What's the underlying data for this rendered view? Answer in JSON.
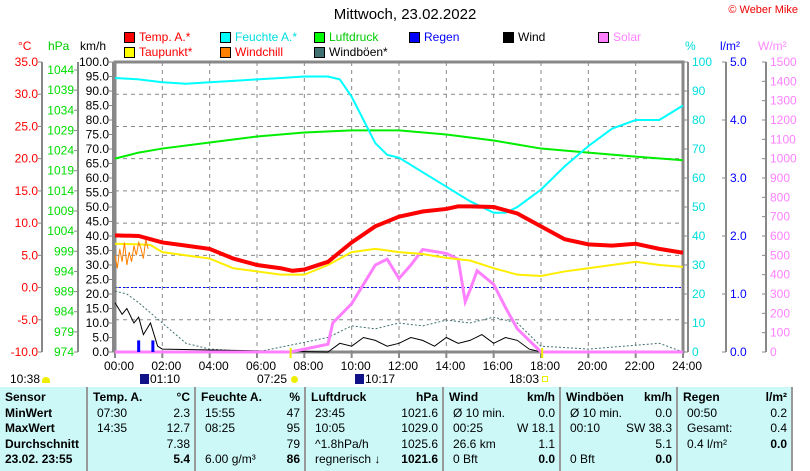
{
  "title": "Mittwoch, 23.02.2022",
  "copyright": "© Weber Mike",
  "legend": [
    {
      "label": "Temp. A.*",
      "color": "#ff0000",
      "text": "#ff0000"
    },
    {
      "label": "Feuchte A.*",
      "color": "#00ffff",
      "text": "#00dddd"
    },
    {
      "label": "Luftdruck",
      "color": "#00ff00",
      "text": "#00cc00"
    },
    {
      "label": "Regen",
      "color": "#0000ff",
      "text": "#0000ff"
    },
    {
      "label": "Wind",
      "color": "#000000",
      "text": "#000000"
    },
    {
      "label": "Solar",
      "color": "#ff80ff",
      "text": "#ff80ff"
    },
    {
      "label": "Taupunkt*",
      "color": "#ffff00",
      "text": "#ff0000"
    },
    {
      "label": "Windchill",
      "color": "#ff8000",
      "text": "#ff0000"
    },
    {
      "label": "Windböen*",
      "color": "#407070",
      "text": "#000000"
    }
  ],
  "axes": {
    "temp": {
      "unit": "°C",
      "ticks": [
        "35.0",
        "30.0",
        "25.0",
        "20.0",
        "15.0",
        "10.0",
        "5.0",
        "0.0",
        "-5.0",
        "-10.0"
      ],
      "color": "#ff0000"
    },
    "pressure": {
      "unit": "hPa",
      "ticks": [
        "1044",
        "1039",
        "1034",
        "1029",
        "1024",
        "1019",
        "1014",
        "1009",
        "1004",
        "999",
        "994",
        "989",
        "984",
        "979",
        "974"
      ],
      "color": "#00dd00"
    },
    "wind": {
      "unit": "km/h",
      "ticks": [
        "100.0",
        "95.0",
        "90.0",
        "85.0",
        "80.0",
        "75.0",
        "70.0",
        "65.0",
        "60.0",
        "55.0",
        "50.0",
        "45.0",
        "40.0",
        "35.0",
        "30.0",
        "25.0",
        "20.0",
        "15.0",
        "10.0",
        "5.0",
        "0.0"
      ],
      "color": "#000000"
    },
    "humidity": {
      "unit": "%",
      "ticks": [
        "100",
        "90",
        "80",
        "70",
        "60",
        "50",
        "40",
        "30",
        "20",
        "10",
        "0"
      ],
      "color": "#00dddd"
    },
    "rain": {
      "unit": "l/m²",
      "ticks": [
        "5.0",
        "4.0",
        "3.0",
        "2.0",
        "1.0",
        "0.0"
      ],
      "color": "#0000ff"
    },
    "solar": {
      "unit": "W/m²",
      "ticks": [
        "1500",
        "1400",
        "1300",
        "1200",
        "1100",
        "1000",
        "900",
        "800",
        "700",
        "600",
        "500",
        "400",
        "300",
        "200",
        "100",
        "0"
      ],
      "color": "#ff80ff"
    },
    "time": [
      "00:00",
      "02:00",
      "04:00",
      "06:00",
      "08:00",
      "10:00",
      "12:00",
      "14:00",
      "16:00",
      "18:00",
      "20:00",
      "22:00",
      "24:00"
    ]
  },
  "series": {
    "temp": [
      [
        0,
        8.1
      ],
      [
        1,
        8
      ],
      [
        1.5,
        7.5
      ],
      [
        2,
        7
      ],
      [
        3,
        6.5
      ],
      [
        4,
        6
      ],
      [
        5,
        4.5
      ],
      [
        6,
        3.5
      ],
      [
        7,
        3
      ],
      [
        7.5,
        2.6
      ],
      [
        8,
        2.8
      ],
      [
        9,
        4
      ],
      [
        10,
        7
      ],
      [
        11,
        9.5
      ],
      [
        12,
        11
      ],
      [
        13,
        11.8
      ],
      [
        14,
        12.2
      ],
      [
        14.5,
        12.6
      ],
      [
        15,
        12.6
      ],
      [
        16,
        12.5
      ],
      [
        17,
        11.5
      ],
      [
        18,
        9.5
      ],
      [
        19,
        7.5
      ],
      [
        20,
        6.7
      ],
      [
        21,
        6.5
      ],
      [
        22,
        6.8
      ],
      [
        23,
        6
      ],
      [
        24,
        5.4
      ]
    ],
    "dewpoint": [
      [
        0,
        6.8
      ],
      [
        1,
        6.7
      ],
      [
        1.5,
        6.6
      ],
      [
        2,
        5.5
      ],
      [
        3,
        5
      ],
      [
        4,
        4.5
      ],
      [
        5,
        3
      ],
      [
        6,
        2.5
      ],
      [
        7,
        2
      ],
      [
        8,
        2
      ],
      [
        9,
        3.5
      ],
      [
        10,
        5.5
      ],
      [
        11,
        6
      ],
      [
        12,
        5.5
      ],
      [
        13,
        5.2
      ],
      [
        14,
        4.6
      ],
      [
        15,
        4.2
      ],
      [
        16,
        3
      ],
      [
        17,
        2
      ],
      [
        18,
        1.8
      ],
      [
        19,
        2.5
      ],
      [
        20,
        3
      ],
      [
        21,
        3.5
      ],
      [
        22,
        4
      ],
      [
        23,
        3.5
      ],
      [
        24,
        3.2
      ]
    ],
    "windchill": [
      [
        0,
        5
      ],
      [
        0.1,
        3
      ],
      [
        0.2,
        6
      ],
      [
        0.3,
        4
      ],
      [
        0.4,
        7
      ],
      [
        0.5,
        3.5
      ],
      [
        0.6,
        5.5
      ],
      [
        0.7,
        4
      ],
      [
        0.8,
        6.5
      ],
      [
        0.9,
        5
      ],
      [
        1,
        7
      ],
      [
        1.1,
        6
      ],
      [
        1.2,
        4.5
      ],
      [
        1.3,
        7.5
      ],
      [
        1.4,
        6
      ]
    ],
    "humidity": [
      [
        0,
        94.5
      ],
      [
        1,
        94
      ],
      [
        2,
        93
      ],
      [
        3,
        92.5
      ],
      [
        4,
        93
      ],
      [
        5,
        93.5
      ],
      [
        6,
        94
      ],
      [
        7,
        94.5
      ],
      [
        8,
        95
      ],
      [
        9,
        95
      ],
      [
        9.5,
        94
      ],
      [
        10,
        88
      ],
      [
        10.5,
        80
      ],
      [
        11,
        72
      ],
      [
        11.5,
        68
      ],
      [
        12,
        67
      ],
      [
        13,
        62
      ],
      [
        14,
        57
      ],
      [
        15,
        52
      ],
      [
        16,
        48
      ],
      [
        16.5,
        48
      ],
      [
        17,
        50
      ],
      [
        18,
        56
      ],
      [
        19,
        64
      ],
      [
        20,
        71
      ],
      [
        21,
        77
      ],
      [
        22,
        80
      ],
      [
        23,
        80
      ],
      [
        24,
        85
      ]
    ],
    "pressure": [
      [
        0,
        1022
      ],
      [
        1,
        1023.5
      ],
      [
        2,
        1024.5
      ],
      [
        4,
        1026
      ],
      [
        6,
        1027.5
      ],
      [
        8,
        1028.5
      ],
      [
        10,
        1029
      ],
      [
        12,
        1029
      ],
      [
        14,
        1028
      ],
      [
        16,
        1026.5
      ],
      [
        18,
        1024.5
      ],
      [
        20,
        1023.5
      ],
      [
        22,
        1022.5
      ],
      [
        24,
        1021.6
      ]
    ],
    "solar": [
      [
        0,
        0
      ],
      [
        7.4,
        0
      ],
      [
        8,
        15
      ],
      [
        9,
        40
      ],
      [
        9.2,
        150
      ],
      [
        10,
        250
      ],
      [
        10.5,
        350
      ],
      [
        11,
        450
      ],
      [
        11.5,
        480
      ],
      [
        12,
        380
      ],
      [
        12.5,
        450
      ],
      [
        13,
        530
      ],
      [
        14,
        510
      ],
      [
        14.5,
        480
      ],
      [
        14.8,
        260
      ],
      [
        15,
        320
      ],
      [
        15.3,
        420
      ],
      [
        16,
        350
      ],
      [
        16.5,
        230
      ],
      [
        17,
        120
      ],
      [
        17.5,
        60
      ],
      [
        18,
        0
      ],
      [
        24,
        0
      ]
    ],
    "wind": [
      [
        0,
        17
      ],
      [
        0.3,
        13
      ],
      [
        0.5,
        15
      ],
      [
        0.8,
        10
      ],
      [
        1,
        12
      ],
      [
        1.2,
        6
      ],
      [
        1.5,
        10
      ],
      [
        1.8,
        2
      ],
      [
        2,
        1
      ],
      [
        9,
        0
      ],
      [
        9.5,
        3
      ],
      [
        10,
        2
      ],
      [
        10.5,
        5
      ],
      [
        11,
        4
      ],
      [
        11.5,
        2
      ],
      [
        12,
        3
      ],
      [
        12.5,
        5
      ],
      [
        13,
        4
      ],
      [
        13.5,
        2
      ],
      [
        14,
        5
      ],
      [
        14.5,
        3
      ],
      [
        15,
        4
      ],
      [
        15.5,
        6
      ],
      [
        16,
        3
      ],
      [
        16.5,
        5
      ],
      [
        17,
        4
      ],
      [
        17.5,
        1
      ],
      [
        18,
        0
      ],
      [
        24,
        0
      ]
    ],
    "gusts": [
      [
        0,
        21
      ],
      [
        0.5,
        20
      ],
      [
        1,
        17
      ],
      [
        2,
        10
      ],
      [
        3,
        3
      ],
      [
        4,
        1
      ],
      [
        6,
        0
      ],
      [
        9,
        5
      ],
      [
        10,
        9
      ],
      [
        11,
        8
      ],
      [
        12,
        10
      ],
      [
        13,
        9
      ],
      [
        14,
        11
      ],
      [
        15,
        10
      ],
      [
        16,
        12
      ],
      [
        17,
        10
      ],
      [
        18,
        2
      ],
      [
        20,
        1
      ],
      [
        23,
        3
      ],
      [
        24,
        0
      ]
    ],
    "rain": [
      [
        1,
        0.2
      ],
      [
        1.6,
        0.2
      ]
    ],
    "daylight": [
      7.42,
      18.05
    ]
  },
  "sun": {
    "moon_set": "10:38",
    "moon_rise": "01:10",
    "sunrise": "07:25",
    "moon2": "10:17",
    "sunset": "18:03"
  },
  "table": {
    "sensor": {
      "h": "Sensor",
      "r": [
        "MinWert",
        "MaxWert",
        "Durchschnitt",
        "23.02. 23:55"
      ]
    },
    "temp": {
      "h": "Temp. A.",
      "u": "°C",
      "r": [
        [
          "07:30",
          "2.3"
        ],
        [
          "14:35",
          "12.7"
        ],
        [
          "",
          "7.38"
        ],
        [
          "",
          "5.4"
        ]
      ]
    },
    "hum": {
      "h": "Feuchte A.",
      "u": "%",
      "r": [
        [
          "15:55",
          "47"
        ],
        [
          "08:25",
          "95"
        ],
        [
          "",
          "79"
        ],
        [
          "6.00 g/m³",
          "86"
        ]
      ]
    },
    "press": {
      "h": "Luftdruck",
      "u": "hPa",
      "r": [
        [
          "23:45",
          "1021.6"
        ],
        [
          "10:05",
          "1029.0"
        ],
        [
          "^1.8hPa/h",
          "1025.6"
        ],
        [
          "regnerisch ↓",
          "1021.6"
        ]
      ]
    },
    "wind": {
      "h": "Wind",
      "u": "km/h",
      "r": [
        [
          "Ø 10 min.",
          "0.0"
        ],
        [
          "00:25",
          "W 18.1"
        ],
        [
          "26.6 km",
          "1.1"
        ],
        [
          "0 Bft",
          "0.0"
        ]
      ]
    },
    "gust": {
      "h": "Windböen",
      "u": "km/h",
      "r": [
        [
          "Ø 10 min.",
          "0.0"
        ],
        [
          "00:10",
          "SW 38.3"
        ],
        [
          "",
          "5.1"
        ],
        [
          "0 Bft",
          "0.0"
        ]
      ]
    },
    "rain": {
      "h": "Regen",
      "u": "l/m²",
      "r": [
        [
          "",
          ""
        ],
        [
          "00:50",
          "0.2"
        ],
        [
          "Gesamt:",
          "0.4"
        ],
        [
          "0.4 l/m²",
          "0.0"
        ]
      ]
    }
  }
}
